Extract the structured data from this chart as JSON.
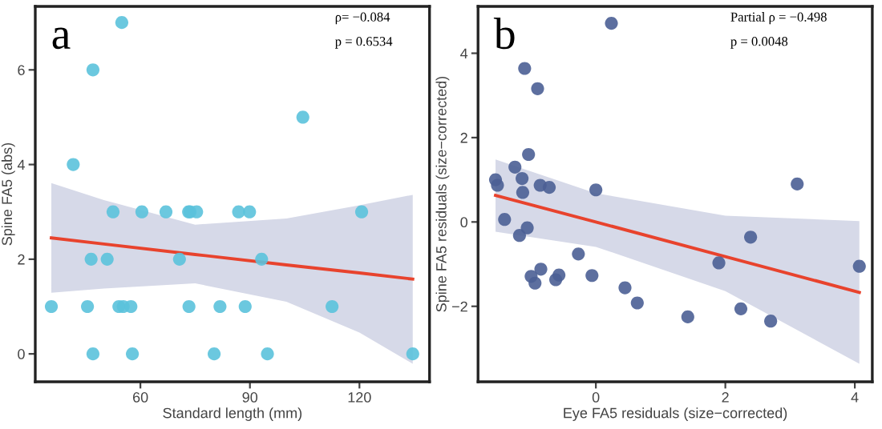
{
  "chart_data": [
    {
      "type": "scatter",
      "xlabel": "Standard length (mm)",
      "ylabel": "Spine FA5 (abs)",
      "annotations": [
        "a",
        "ρ= −0.084",
        "p = 0.6534"
      ],
      "xlim": [
        31.2,
        139.2
      ],
      "ylim": [
        -0.59,
        7.34
      ],
      "xticks": [
        60,
        90,
        120
      ],
      "yticks": [
        0,
        2,
        4,
        6
      ],
      "grid": false,
      "series": [
        {
          "type": "scatter",
          "marker": "circle",
          "color": "#5bc2dc",
          "x": [
            35.6,
            41.6,
            47.0,
            54.9,
            52.5,
            60.4,
            67.0,
            73.2,
            73.6,
            75.4,
            86.9,
            89.9,
            120.6,
            46.5,
            50.9,
            70.7,
            93.2,
            104.5,
            45.5,
            54.1,
            55.3,
            57.4,
            73.3,
            81.8,
            88.7,
            112.5,
            47.0,
            57.8,
            80.2,
            94.8,
            134.6
          ],
          "values": [
            1,
            4,
            6,
            7,
            3,
            3,
            3,
            3,
            3,
            3,
            3,
            3,
            3,
            2,
            2,
            2,
            2,
            5,
            1,
            1,
            1,
            1,
            1,
            1,
            1,
            1,
            0,
            0,
            0,
            0,
            0
          ]
        },
        {
          "type": "line",
          "marker": "none",
          "color": "#e8432d",
          "x": [
            35.6,
            50,
            75,
            100,
            120,
            134.6
          ],
          "values": [
            2.45,
            2.32,
            2.1,
            1.88,
            1.71,
            1.58
          ],
          "lower": [
            1.29,
            1.38,
            1.49,
            1.1,
            0.45,
            -0.21
          ],
          "upper": [
            3.61,
            3.25,
            2.73,
            2.86,
            3.14,
            3.36
          ]
        }
      ]
    },
    {
      "type": "scatter",
      "xlabel": "Eye FA5 residuals (size−corrected)",
      "ylabel": "Spine FA5 residuals (size−corrected)",
      "annotations": [
        "b",
        "Partial ρ = −0.498",
        "p = 0.0048"
      ],
      "xlim": [
        -1.82,
        4.27
      ],
      "ylim": [
        -3.79,
        5.11
      ],
      "xticks": [
        0,
        2,
        4
      ],
      "yticks": [
        -2,
        0,
        2,
        4
      ],
      "grid": false,
      "series": [
        {
          "type": "scatter",
          "marker": "circle",
          "color": "#4b5f95",
          "x": [
            0.24,
            -1.1,
            -0.9,
            -1.04,
            -1.25,
            -1.55,
            -1.52,
            -1.14,
            -1.13,
            -0.86,
            -0.72,
            0.0,
            3.11,
            -1.41,
            -1.18,
            -1.06,
            2.39,
            -0.27,
            1.9,
            4.07,
            -0.85,
            -1.0,
            -0.94,
            -0.57,
            -0.62,
            -0.06,
            0.45,
            0.64,
            1.42,
            2.24,
            2.7
          ],
          "values": [
            4.71,
            3.64,
            3.16,
            1.6,
            1.3,
            1.0,
            0.87,
            1.03,
            0.7,
            0.87,
            0.82,
            0.76,
            0.9,
            0.06,
            -0.32,
            -0.14,
            -0.36,
            -0.76,
            -0.97,
            -1.05,
            -1.12,
            -1.29,
            -1.45,
            -1.26,
            -1.37,
            -1.27,
            -1.56,
            -1.92,
            -2.25,
            -2.06,
            -2.35
          ]
        },
        {
          "type": "line",
          "marker": "none",
          "color": "#e8432d",
          "x": [
            -1.55,
            0,
            2,
            4.07
          ],
          "values": [
            0.63,
            0.0,
            -0.82,
            -1.67
          ],
          "lower": [
            -0.23,
            -0.59,
            -1.64,
            -3.36
          ],
          "upper": [
            1.48,
            0.68,
            0.15,
            0.02
          ]
        }
      ]
    }
  ]
}
